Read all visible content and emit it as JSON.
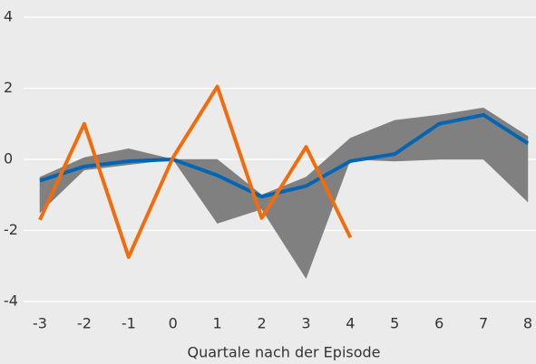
{
  "chart_data": {
    "type": "line",
    "x_label": "Quartale nach der Episode",
    "x": [
      -3,
      -2,
      -1,
      0,
      1,
      2,
      3,
      4,
      5,
      6,
      7,
      8
    ],
    "xlim": [
      -3,
      8
    ],
    "xticks": [
      -3,
      -2,
      -1,
      0,
      1,
      2,
      3,
      4,
      5,
      6,
      7,
      8
    ],
    "ylim": [
      -4,
      4
    ],
    "yticks": [
      -4,
      -2,
      0,
      2,
      4
    ],
    "grid": true,
    "band": {
      "color": "#808080",
      "upper": [
        -0.5,
        0.05,
        0.3,
        0,
        0,
        -1.0,
        -0.5,
        0.6,
        1.1,
        1.25,
        1.45,
        0.65
      ],
      "lower": [
        -1.5,
        -0.3,
        -0.15,
        0,
        -1.8,
        -1.4,
        -3.35,
        0,
        -0.05,
        0,
        0,
        -1.2
      ]
    },
    "series": [
      {
        "color": "#0066b3",
        "values": [
          -0.6,
          -0.2,
          -0.05,
          0,
          -0.45,
          -1.05,
          -0.75,
          -0.05,
          0.15,
          1.0,
          1.25,
          0.45
        ]
      },
      {
        "color": "#f26c0d",
        "values": [
          -1.7,
          1.0,
          -2.75,
          0.05,
          2.05,
          -1.65,
          0.35,
          -2.2,
          null,
          null,
          null,
          null
        ]
      }
    ]
  }
}
